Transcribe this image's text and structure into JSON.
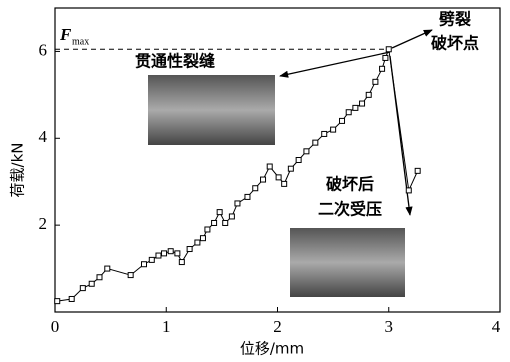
{
  "chart_data": {
    "type": "line",
    "x": [
      0.02,
      0.15,
      0.25,
      0.33,
      0.4,
      0.47,
      0.68,
      0.8,
      0.87,
      0.93,
      0.98,
      1.04,
      1.1,
      1.14,
      1.21,
      1.28,
      1.33,
      1.37,
      1.43,
      1.48,
      1.53,
      1.59,
      1.64,
      1.73,
      1.8,
      1.87,
      1.93,
      2.01,
      2.06,
      2.12,
      2.19,
      2.26,
      2.34,
      2.42,
      2.5,
      2.58,
      2.64,
      2.7,
      2.76,
      2.82,
      2.88,
      2.94,
      2.97,
      3.0,
      3.18,
      3.26
    ],
    "values": [
      0.25,
      0.3,
      0.55,
      0.65,
      0.8,
      1.0,
      0.85,
      1.1,
      1.2,
      1.3,
      1.35,
      1.4,
      1.35,
      1.15,
      1.45,
      1.6,
      1.7,
      1.9,
      2.05,
      2.3,
      2.05,
      2.2,
      2.5,
      2.65,
      2.85,
      3.05,
      3.35,
      3.1,
      2.95,
      3.3,
      3.5,
      3.7,
      3.9,
      4.1,
      4.2,
      4.4,
      4.6,
      4.7,
      4.8,
      5.0,
      5.3,
      5.6,
      5.85,
      6.05,
      2.8,
      3.25
    ],
    "color": "#000000",
    "xlabel": "位移/mm",
    "ylabel": "荷载/kN",
    "xlim": [
      0,
      4
    ],
    "xticks": [
      0,
      1,
      2,
      3,
      4
    ],
    "ylim": [
      0,
      7
    ],
    "yticks": [
      2,
      4,
      6
    ],
    "annotations": {
      "fmax_symbol": "F",
      "fmax_subscript": "max",
      "split_point": [
        "劈裂",
        "破坏点"
      ],
      "crack": "贯通性裂缝",
      "recompress": [
        "破坏后",
        "二次受压"
      ]
    }
  }
}
